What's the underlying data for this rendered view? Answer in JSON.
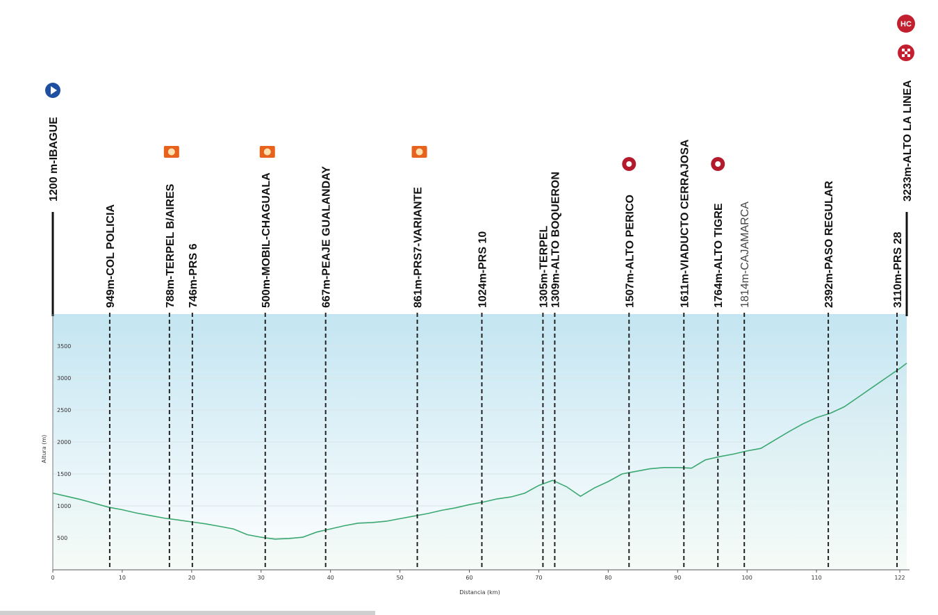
{
  "chart_data": {
    "type": "area",
    "title": "",
    "xlabel": "Distancia (km)",
    "ylabel": "Altura (m)",
    "xlim": [
      0,
      123
    ],
    "ylim": [
      0,
      4000
    ],
    "x_ticks": [
      "0",
      "10",
      "20",
      "30",
      "40",
      "50",
      "60",
      "70",
      "80",
      "90",
      "100",
      "110",
      "122"
    ],
    "y_ticks": [
      "500",
      "1000",
      "1500",
      "2000",
      "2500",
      "3000",
      "3500"
    ],
    "grid": true,
    "colors": {
      "line": "#3aa870",
      "fill_top": "#cfe9f2",
      "fill_bottom": "#f4fbf6",
      "band": "#bfe3f0"
    },
    "series": [
      {
        "x": [
          0,
          2,
          4,
          6,
          8,
          10,
          12,
          14,
          16,
          18,
          20,
          22,
          24,
          26,
          28,
          30,
          32,
          34,
          36,
          38,
          40,
          42,
          44,
          46,
          48,
          50,
          52,
          54,
          56,
          58,
          60,
          62,
          64,
          66,
          68,
          70,
          72,
          74,
          76,
          78,
          80,
          82,
          84,
          86,
          88,
          90,
          92,
          94,
          96,
          98,
          100,
          102,
          104,
          106,
          108,
          110,
          112,
          114,
          116,
          118,
          120,
          122,
          123
        ],
        "y": [
          1200,
          1150,
          1100,
          1040,
          980,
          940,
          890,
          850,
          810,
          780,
          750,
          720,
          680,
          640,
          550,
          510,
          480,
          490,
          510,
          590,
          640,
          690,
          730,
          740,
          760,
          800,
          840,
          880,
          930,
          970,
          1020,
          1060,
          1110,
          1140,
          1200,
          1320,
          1400,
          1300,
          1150,
          1280,
          1380,
          1500,
          1540,
          1580,
          1600,
          1600,
          1590,
          1720,
          1770,
          1810,
          1860,
          1900,
          2030,
          2160,
          2280,
          2380,
          2450,
          2550,
          2700,
          2850,
          3000,
          3150,
          3233
        ]
      }
    ],
    "waypoints": [
      {
        "label": "1200 m-IBAGUE",
        "km": 0,
        "icon": "start-icon",
        "style": "bold"
      },
      {
        "label": "949m-COL POLICIA",
        "km": 8.2,
        "icon": "",
        "style": "bold"
      },
      {
        "label": "788m-TERPEL B/AIRES",
        "km": 16.8,
        "icon": "feed-zone-icon",
        "style": "bold"
      },
      {
        "label": "746m-PRS 6",
        "km": 20.1,
        "icon": "",
        "style": "bold"
      },
      {
        "label": "500m-MOBIL-CHAGUALA",
        "km": 30.6,
        "icon": "feed-zone-icon",
        "style": "bold"
      },
      {
        "label": "667m-PEAJE GUALANDAY",
        "km": 39.3,
        "icon": "",
        "style": "bold"
      },
      {
        "label": "861m-PRS7-VARIANTE",
        "km": 52.5,
        "icon": "feed-zone-icon",
        "style": "bold"
      },
      {
        "label": "1024m-PRS 10",
        "km": 61.8,
        "icon": "",
        "style": "bold"
      },
      {
        "label": "1305m-TERPEL",
        "km": 70.6,
        "icon": "",
        "style": "bold"
      },
      {
        "label": "1309m-ALTO BOQUERON",
        "km": 72.3,
        "icon": "",
        "style": "bold"
      },
      {
        "label": "1507m-ALTO PERICO",
        "km": 83,
        "icon": "category-3-climb-icon",
        "style": "bold"
      },
      {
        "label": "1611m-VIADUCTO CERRAJOSA",
        "km": 90.9,
        "icon": "",
        "style": "bold"
      },
      {
        "label": "1764m-ALTO TIGRE",
        "km": 95.8,
        "icon": "category-3-climb-icon",
        "style": "bold"
      },
      {
        "label": "1814m-CAJAMARCA",
        "km": 99.6,
        "icon": "",
        "style": "light"
      },
      {
        "label": "2392m-PASO REGULAR",
        "km": 111.7,
        "icon": "",
        "style": "bold"
      },
      {
        "label": "3110m-PRS 28",
        "km": 121.6,
        "icon": "",
        "style": "bold"
      },
      {
        "label": "3233m-ALTO LA LINEA",
        "km": 123,
        "icon": "finish-icon",
        "style": "bold"
      }
    ],
    "badges": {
      "hc": "HC"
    }
  }
}
